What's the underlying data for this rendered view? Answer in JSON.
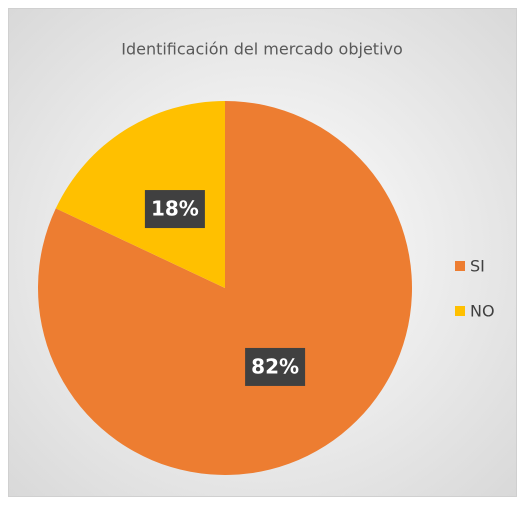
{
  "chart_data": {
    "type": "pie",
    "title": "Identificación del mercado objetivo",
    "categories": [
      "SI",
      "NO"
    ],
    "values": [
      82,
      18
    ],
    "value_labels": [
      "82%",
      "18%"
    ],
    "colors": [
      "#ED7D31",
      "#FFC000"
    ],
    "legend": "right"
  }
}
